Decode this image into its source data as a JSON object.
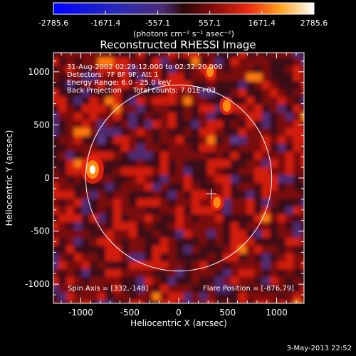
{
  "chart_data": {
    "type": "heatmap",
    "title": "Reconstructed RHESSI Image",
    "xlabel": "Heliocentric X (arcsec)",
    "ylabel": "Heliocentric Y (arcsec)",
    "xlim": [
      -1280,
      1280
    ],
    "ylim": [
      -1180,
      1180
    ],
    "xticks": [
      -1000,
      -500,
      0,
      500,
      1000
    ],
    "yticks": [
      1000,
      500,
      0,
      -500,
      -1000
    ],
    "colorbar": {
      "ticks": [
        "-2785.6",
        "-1671.4",
        "-557.1",
        "557.1",
        "1671.4",
        "2785.6"
      ],
      "range": [
        -2785.6,
        2785.6
      ],
      "units": "(photons cm⁻² s⁻¹ asec⁻²)"
    },
    "info_lines": [
      "31-Aug-2002 02:29:12.000 to 02:32:20.000",
      "Detectors: 7F 8F 9F, Att 1",
      "Energy Range: 6.0 - 25.0 keV",
      "Back Projection     Total counts: 7.01E+03"
    ],
    "bright_sources": [
      {
        "x": -880,
        "y": 80,
        "intensity": 2785.6
      },
      {
        "x": 490,
        "y": 680,
        "intensity": 1500
      },
      {
        "x": 320,
        "y": 1000,
        "intensity": 1200
      },
      {
        "x": 390,
        "y": -230,
        "intensity": 1300
      }
    ],
    "solar_limb_radius": 950,
    "spin_axis_marker": {
      "x": 332,
      "y": -148
    },
    "spin_axis_text": "Spin Axis = [332,-148]",
    "flare_position_text": "Flare Position = [-876,79]",
    "footer_date": "3-May-2013 22:52"
  }
}
